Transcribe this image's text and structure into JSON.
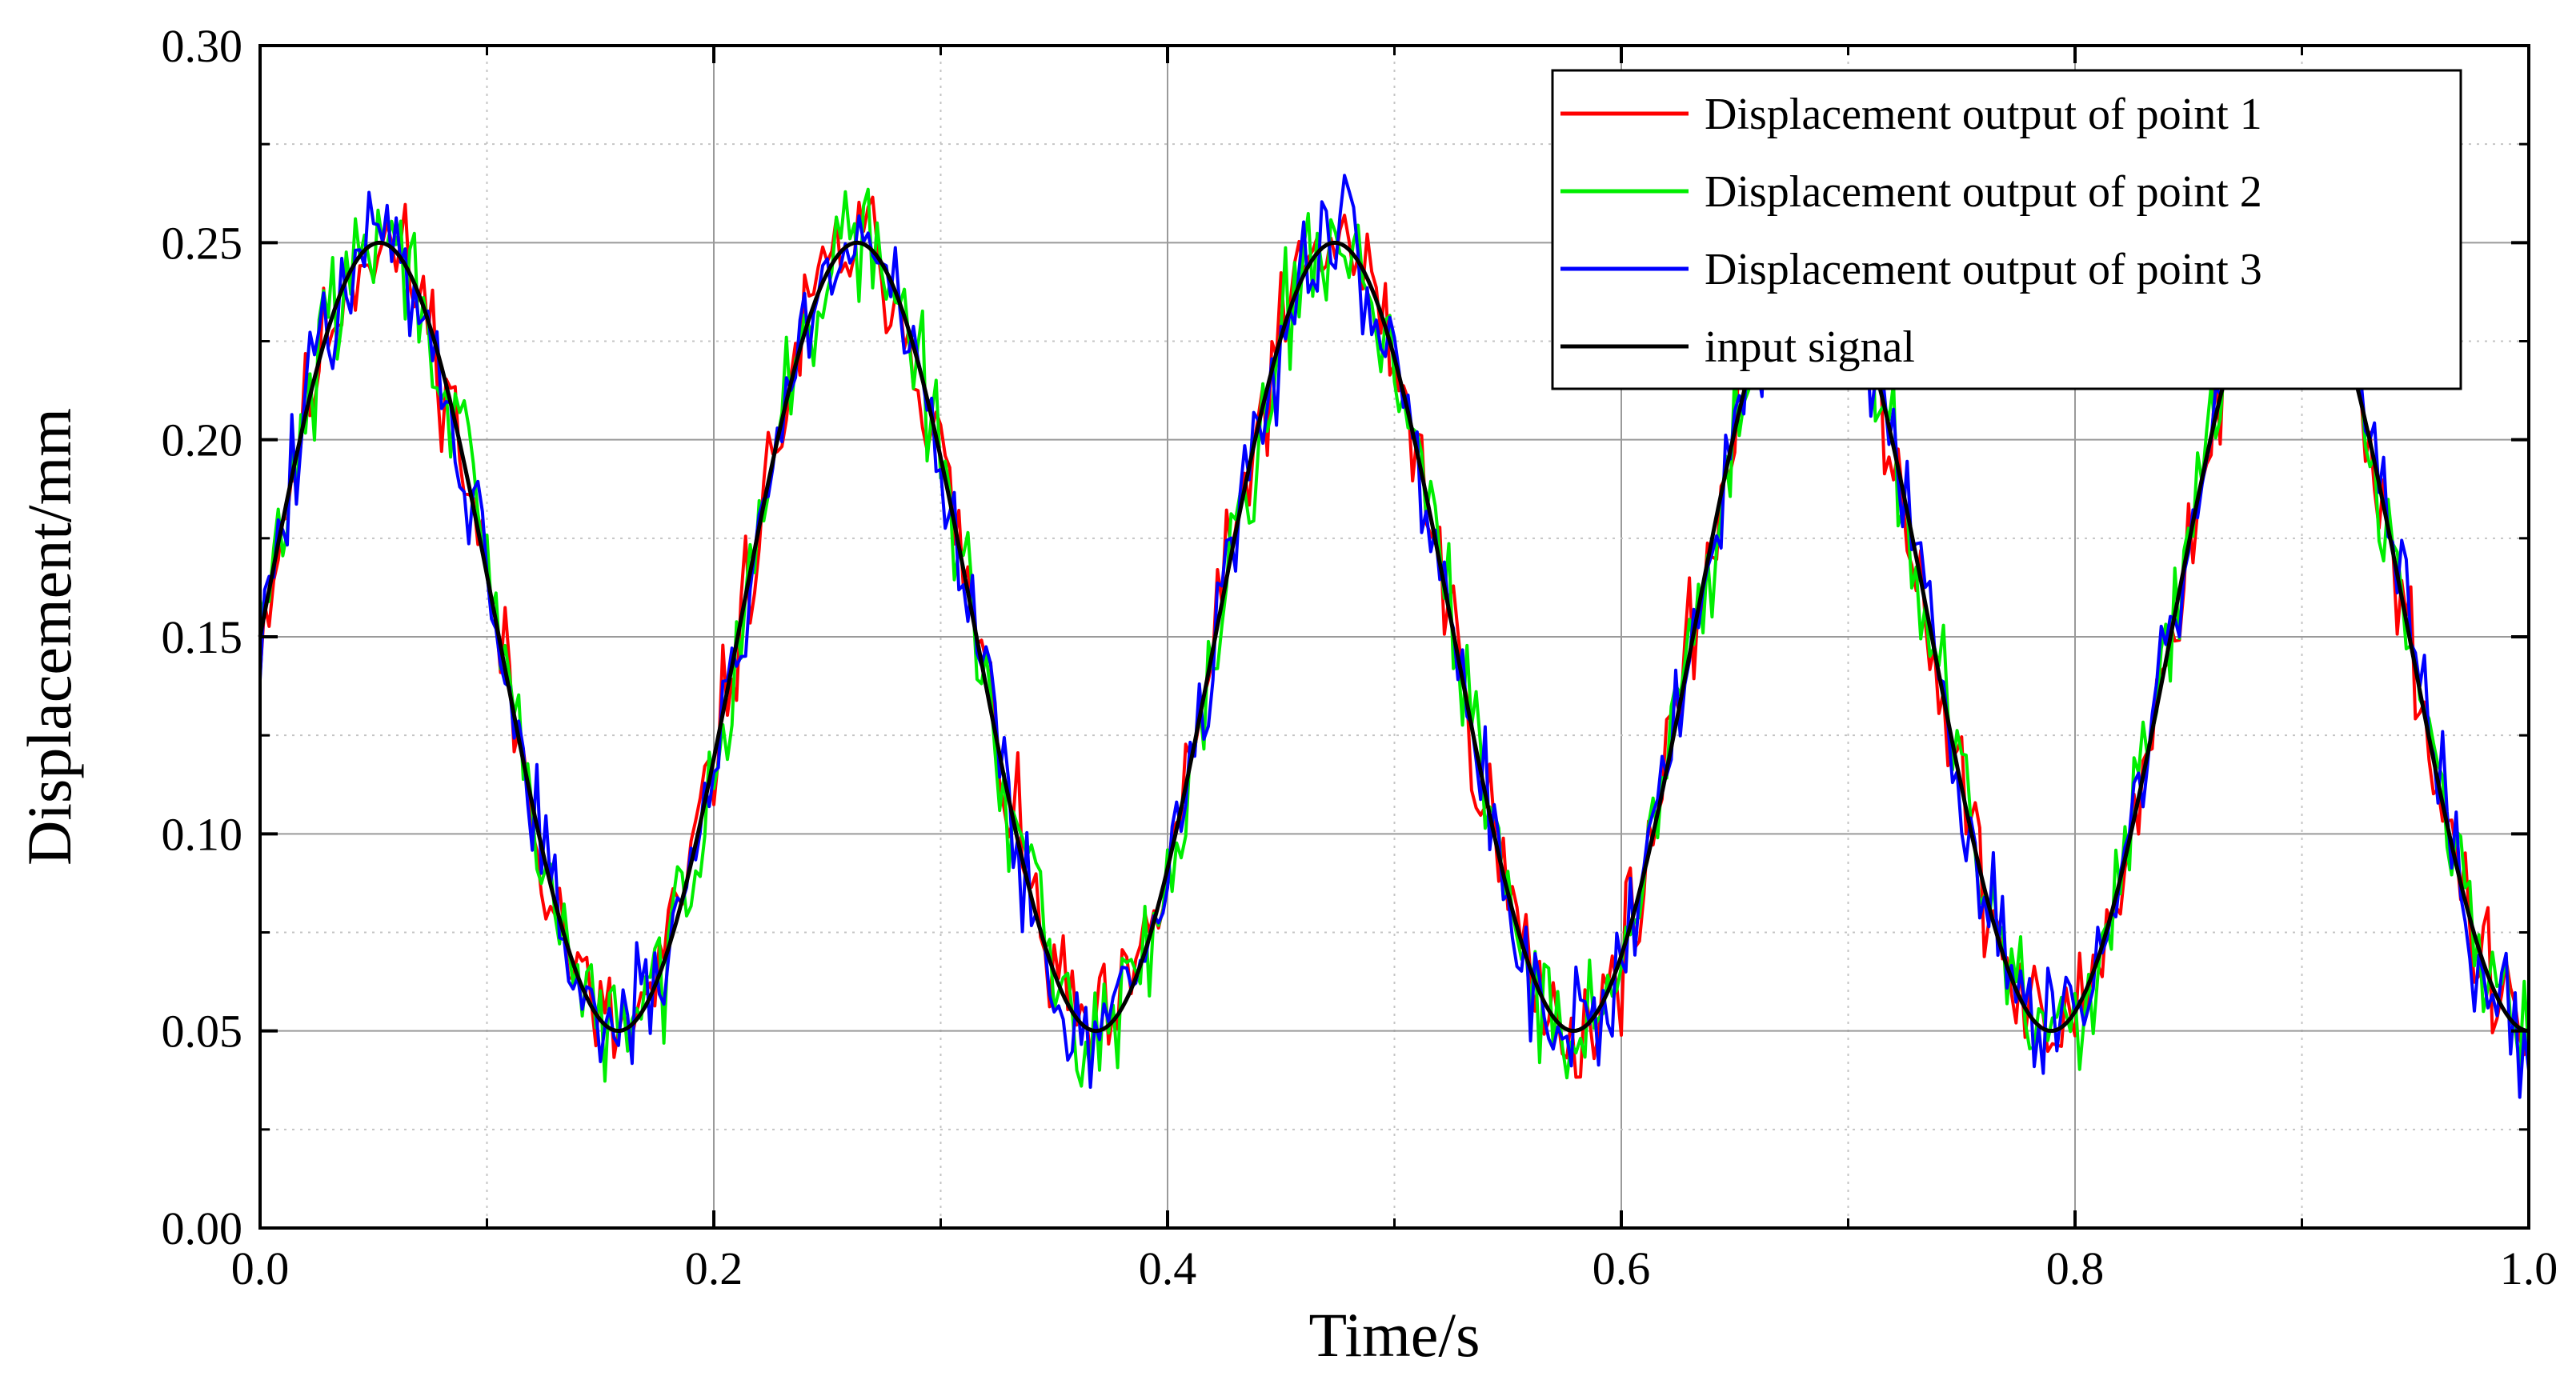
{
  "chart_data": {
    "type": "line",
    "title": "",
    "xlabel": "Time/s",
    "ylabel": "Displacement/mm",
    "xlim": [
      0.0,
      1.0
    ],
    "ylim": [
      0.0,
      0.3
    ],
    "xticks": [
      0.0,
      0.2,
      0.4,
      0.6,
      0.8,
      1.0
    ],
    "xtick_labels": [
      "0.0",
      "0.2",
      "0.4",
      "0.6",
      "0.8",
      "1.0"
    ],
    "yticks": [
      0.0,
      0.05,
      0.1,
      0.15,
      0.2,
      0.25,
      0.3
    ],
    "ytick_labels": [
      "0.00",
      "0.05",
      "0.10",
      "0.15",
      "0.20",
      "0.25",
      "0.30"
    ],
    "grid": true,
    "legend_position": "top-right",
    "input_signal": {
      "offset": 0.15,
      "amplitude": 0.1,
      "frequency_hz": 4.75,
      "x_start": 0.0,
      "x_end": 1.0,
      "points": 600
    },
    "noise": {
      "sample_count": 500,
      "amplitude_mm": 0.012
    },
    "series": [
      {
        "name": "Displacement output of point 1",
        "color": "#ff0000",
        "kind": "measured",
        "seed": 11
      },
      {
        "name": "Displacement output of point 2",
        "color": "#00ee00",
        "kind": "measured",
        "seed": 29
      },
      {
        "name": "Displacement output of point 3",
        "color": "#0000ff",
        "kind": "measured",
        "seed": 47
      },
      {
        "name": "input signal",
        "color": "#000000",
        "kind": "reference",
        "seed": 0
      }
    ]
  }
}
